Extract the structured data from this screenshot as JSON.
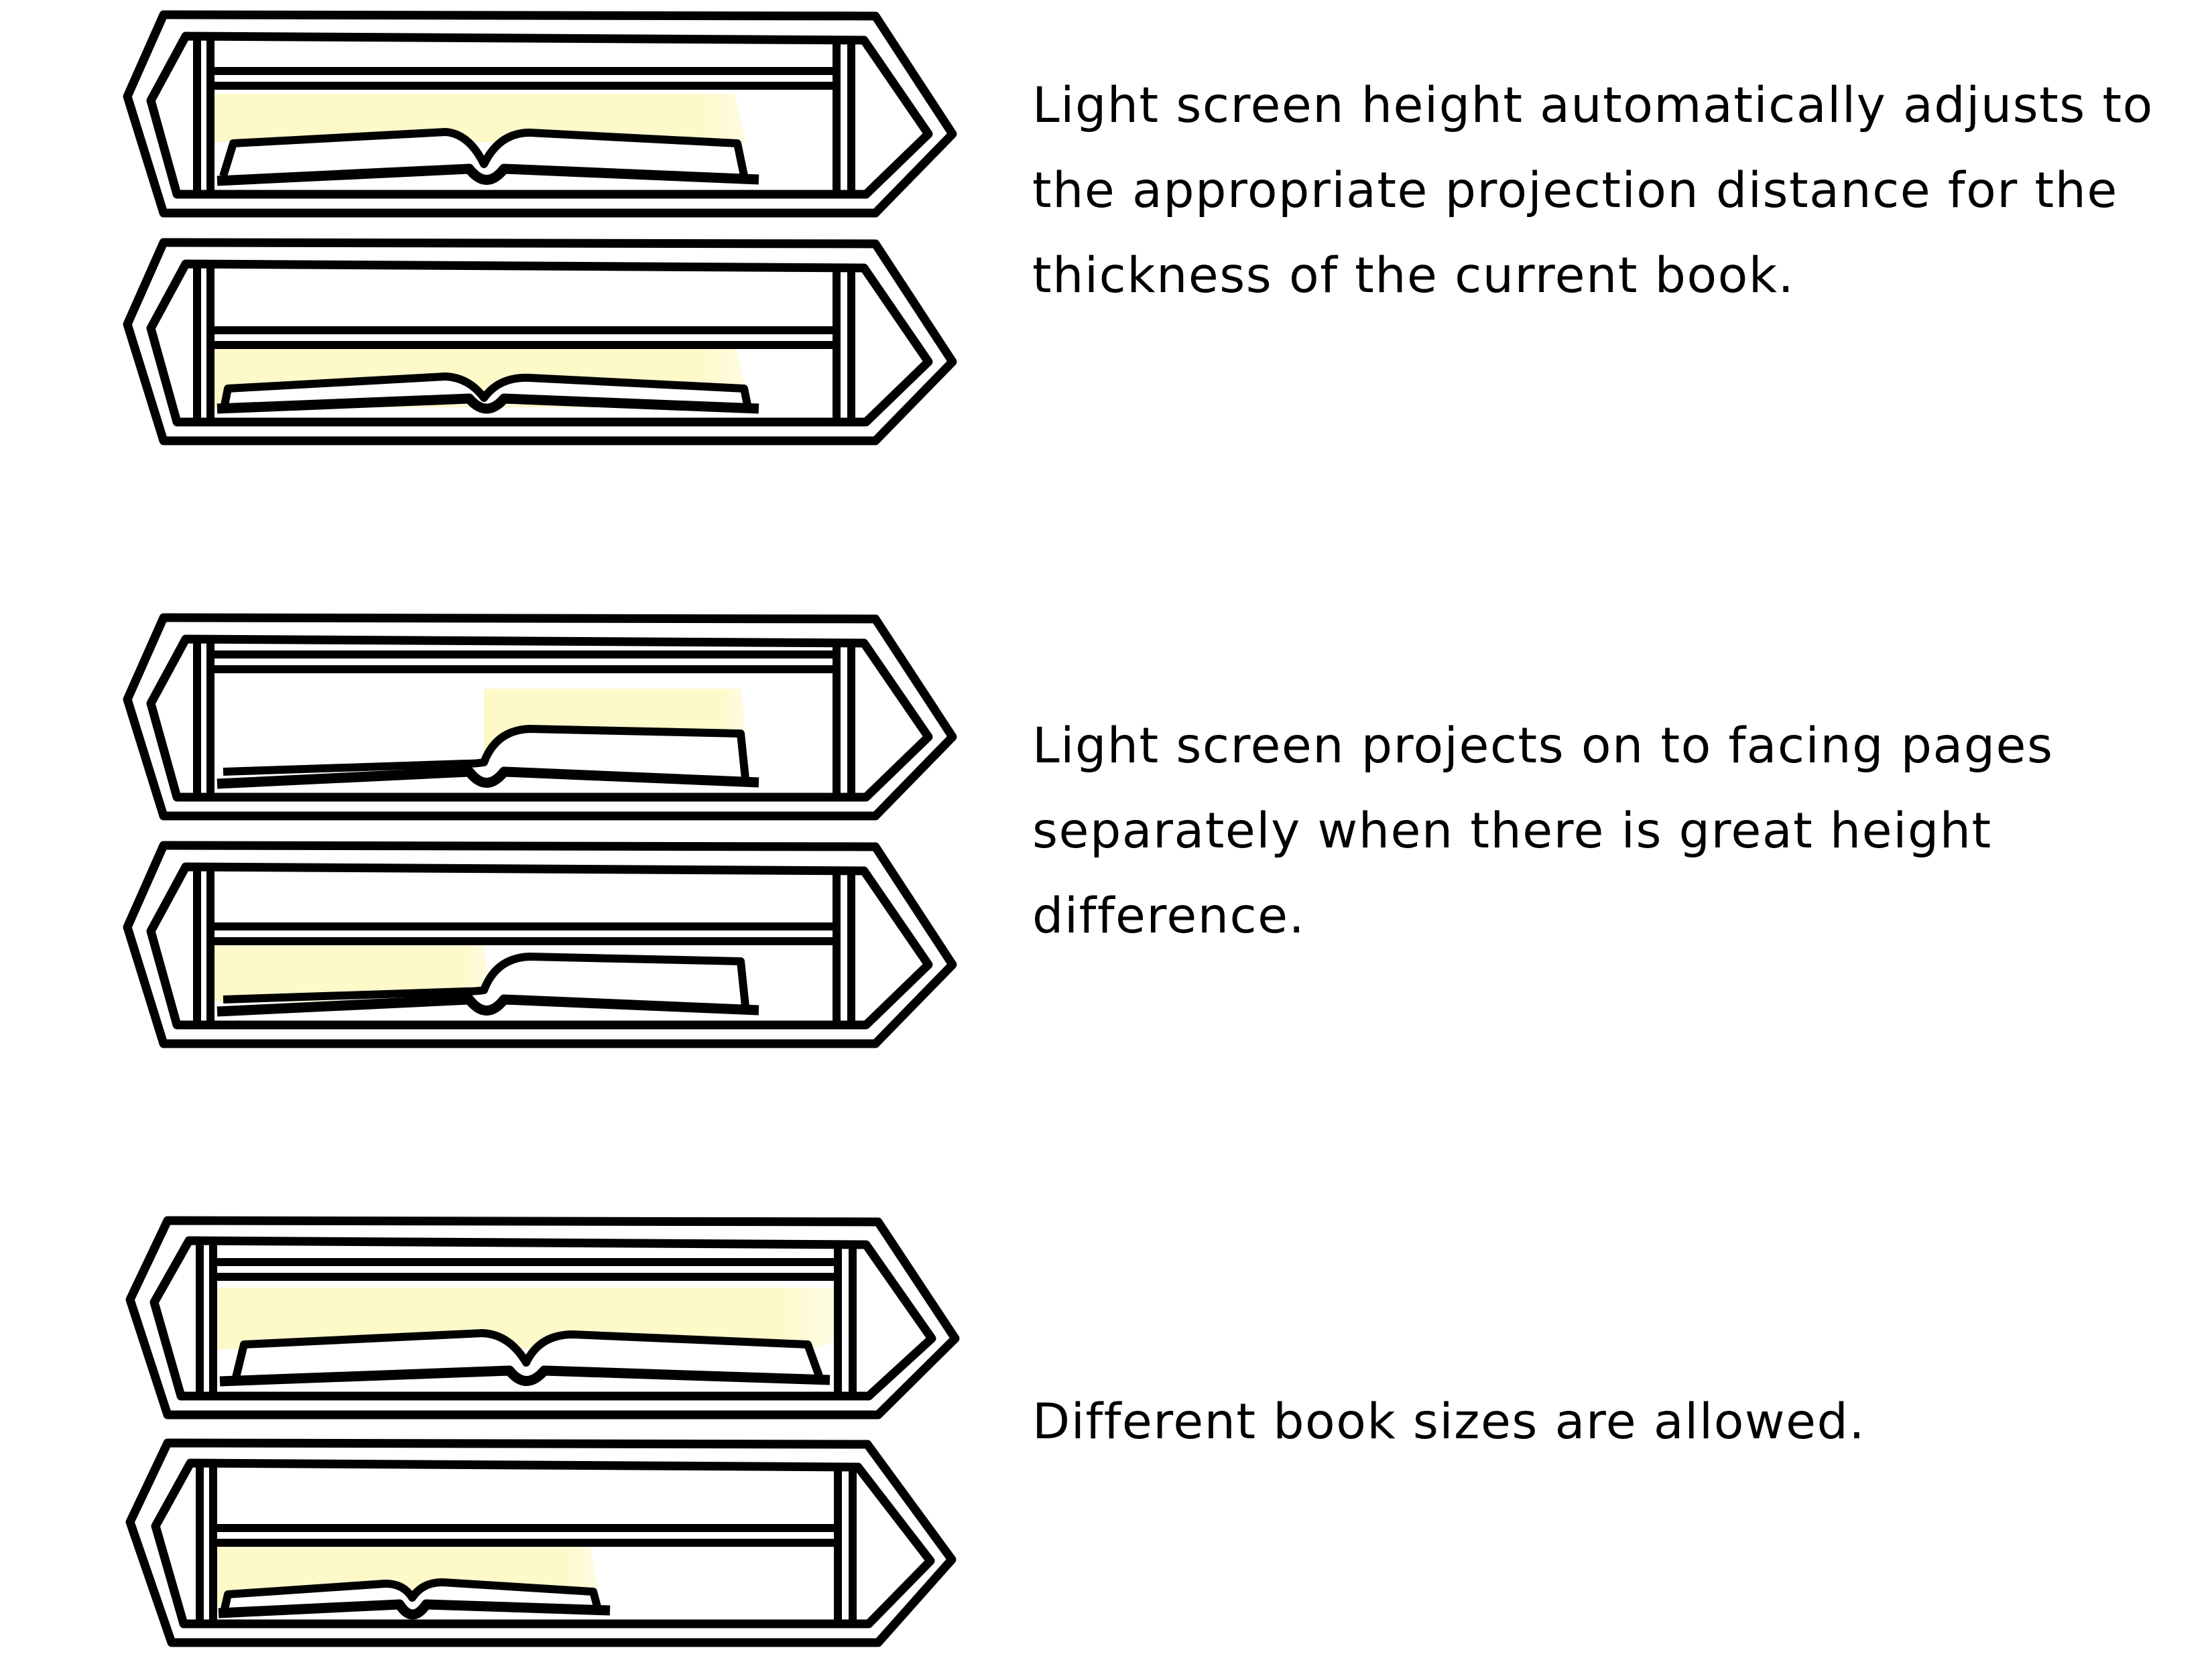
{
  "captions": [
    "Light screen height automatically adjusts to the appropriate projection distance for the thickness of the current book.",
    "Light screen projects on to facing pages separately when there is great height difference.",
    "Different book sizes are allowed."
  ],
  "colors": {
    "stroke": "#000000",
    "light": "#fdf9c9",
    "background": "#ffffff"
  },
  "icons": [
    "device-frame-icon",
    "book-icon",
    "light-beam-icon"
  ]
}
